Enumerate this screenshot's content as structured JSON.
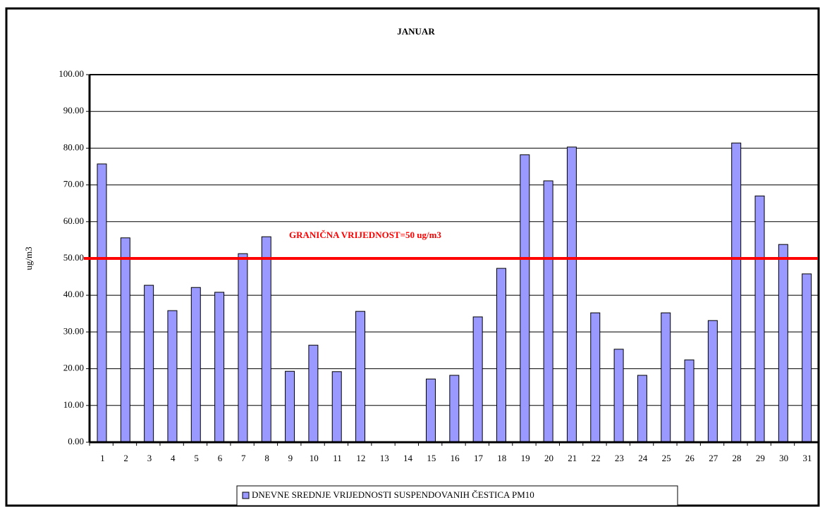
{
  "chart_data": {
    "type": "bar",
    "title": "JANUAR",
    "y_label": "ug/m3",
    "categories": [
      "1",
      "2",
      "3",
      "4",
      "5",
      "6",
      "7",
      "8",
      "9",
      "10",
      "11",
      "12",
      "13",
      "14",
      "15",
      "16",
      "17",
      "18",
      "19",
      "20",
      "21",
      "22",
      "23",
      "24",
      "25",
      "26",
      "27",
      "28",
      "29",
      "30",
      "31"
    ],
    "series": [
      {
        "name": "DNEVNE SREDNJE VRIJEDNOSTI SUSPENDOVANIH ČESTICA PM10",
        "color": "#9999ff",
        "values": [
          75.7,
          55.6,
          42.7,
          35.8,
          42.1,
          40.8,
          51.3,
          55.9,
          19.3,
          26.4,
          19.2,
          35.6,
          null,
          null,
          17.2,
          18.2,
          34.1,
          47.3,
          78.2,
          71.1,
          80.3,
          35.2,
          25.3,
          18.2,
          35.2,
          22.4,
          33.1,
          81.4,
          67.0,
          53.8,
          45.8
        ]
      }
    ],
    "ylim": [
      0,
      100
    ],
    "yticks": [
      {
        "value": 0,
        "label": "0.00"
      },
      {
        "value": 10,
        "label": "10.00"
      },
      {
        "value": 20,
        "label": "20.00"
      },
      {
        "value": 30,
        "label": "30.00"
      },
      {
        "value": 40,
        "label": "40.00"
      },
      {
        "value": 50,
        "label": "50.00"
      },
      {
        "value": 60,
        "label": "60.00"
      },
      {
        "value": 70,
        "label": "70.00"
      },
      {
        "value": 80,
        "label": "80.00"
      },
      {
        "value": 90,
        "label": "90.00"
      },
      {
        "value": 100,
        "label": "100.00"
      }
    ],
    "grid": true,
    "threshold": {
      "value": 50,
      "label": "GRANIČNA VRIJEDNOST=50 ug/m3",
      "color": "#ff0000"
    },
    "legend": "bottom"
  }
}
